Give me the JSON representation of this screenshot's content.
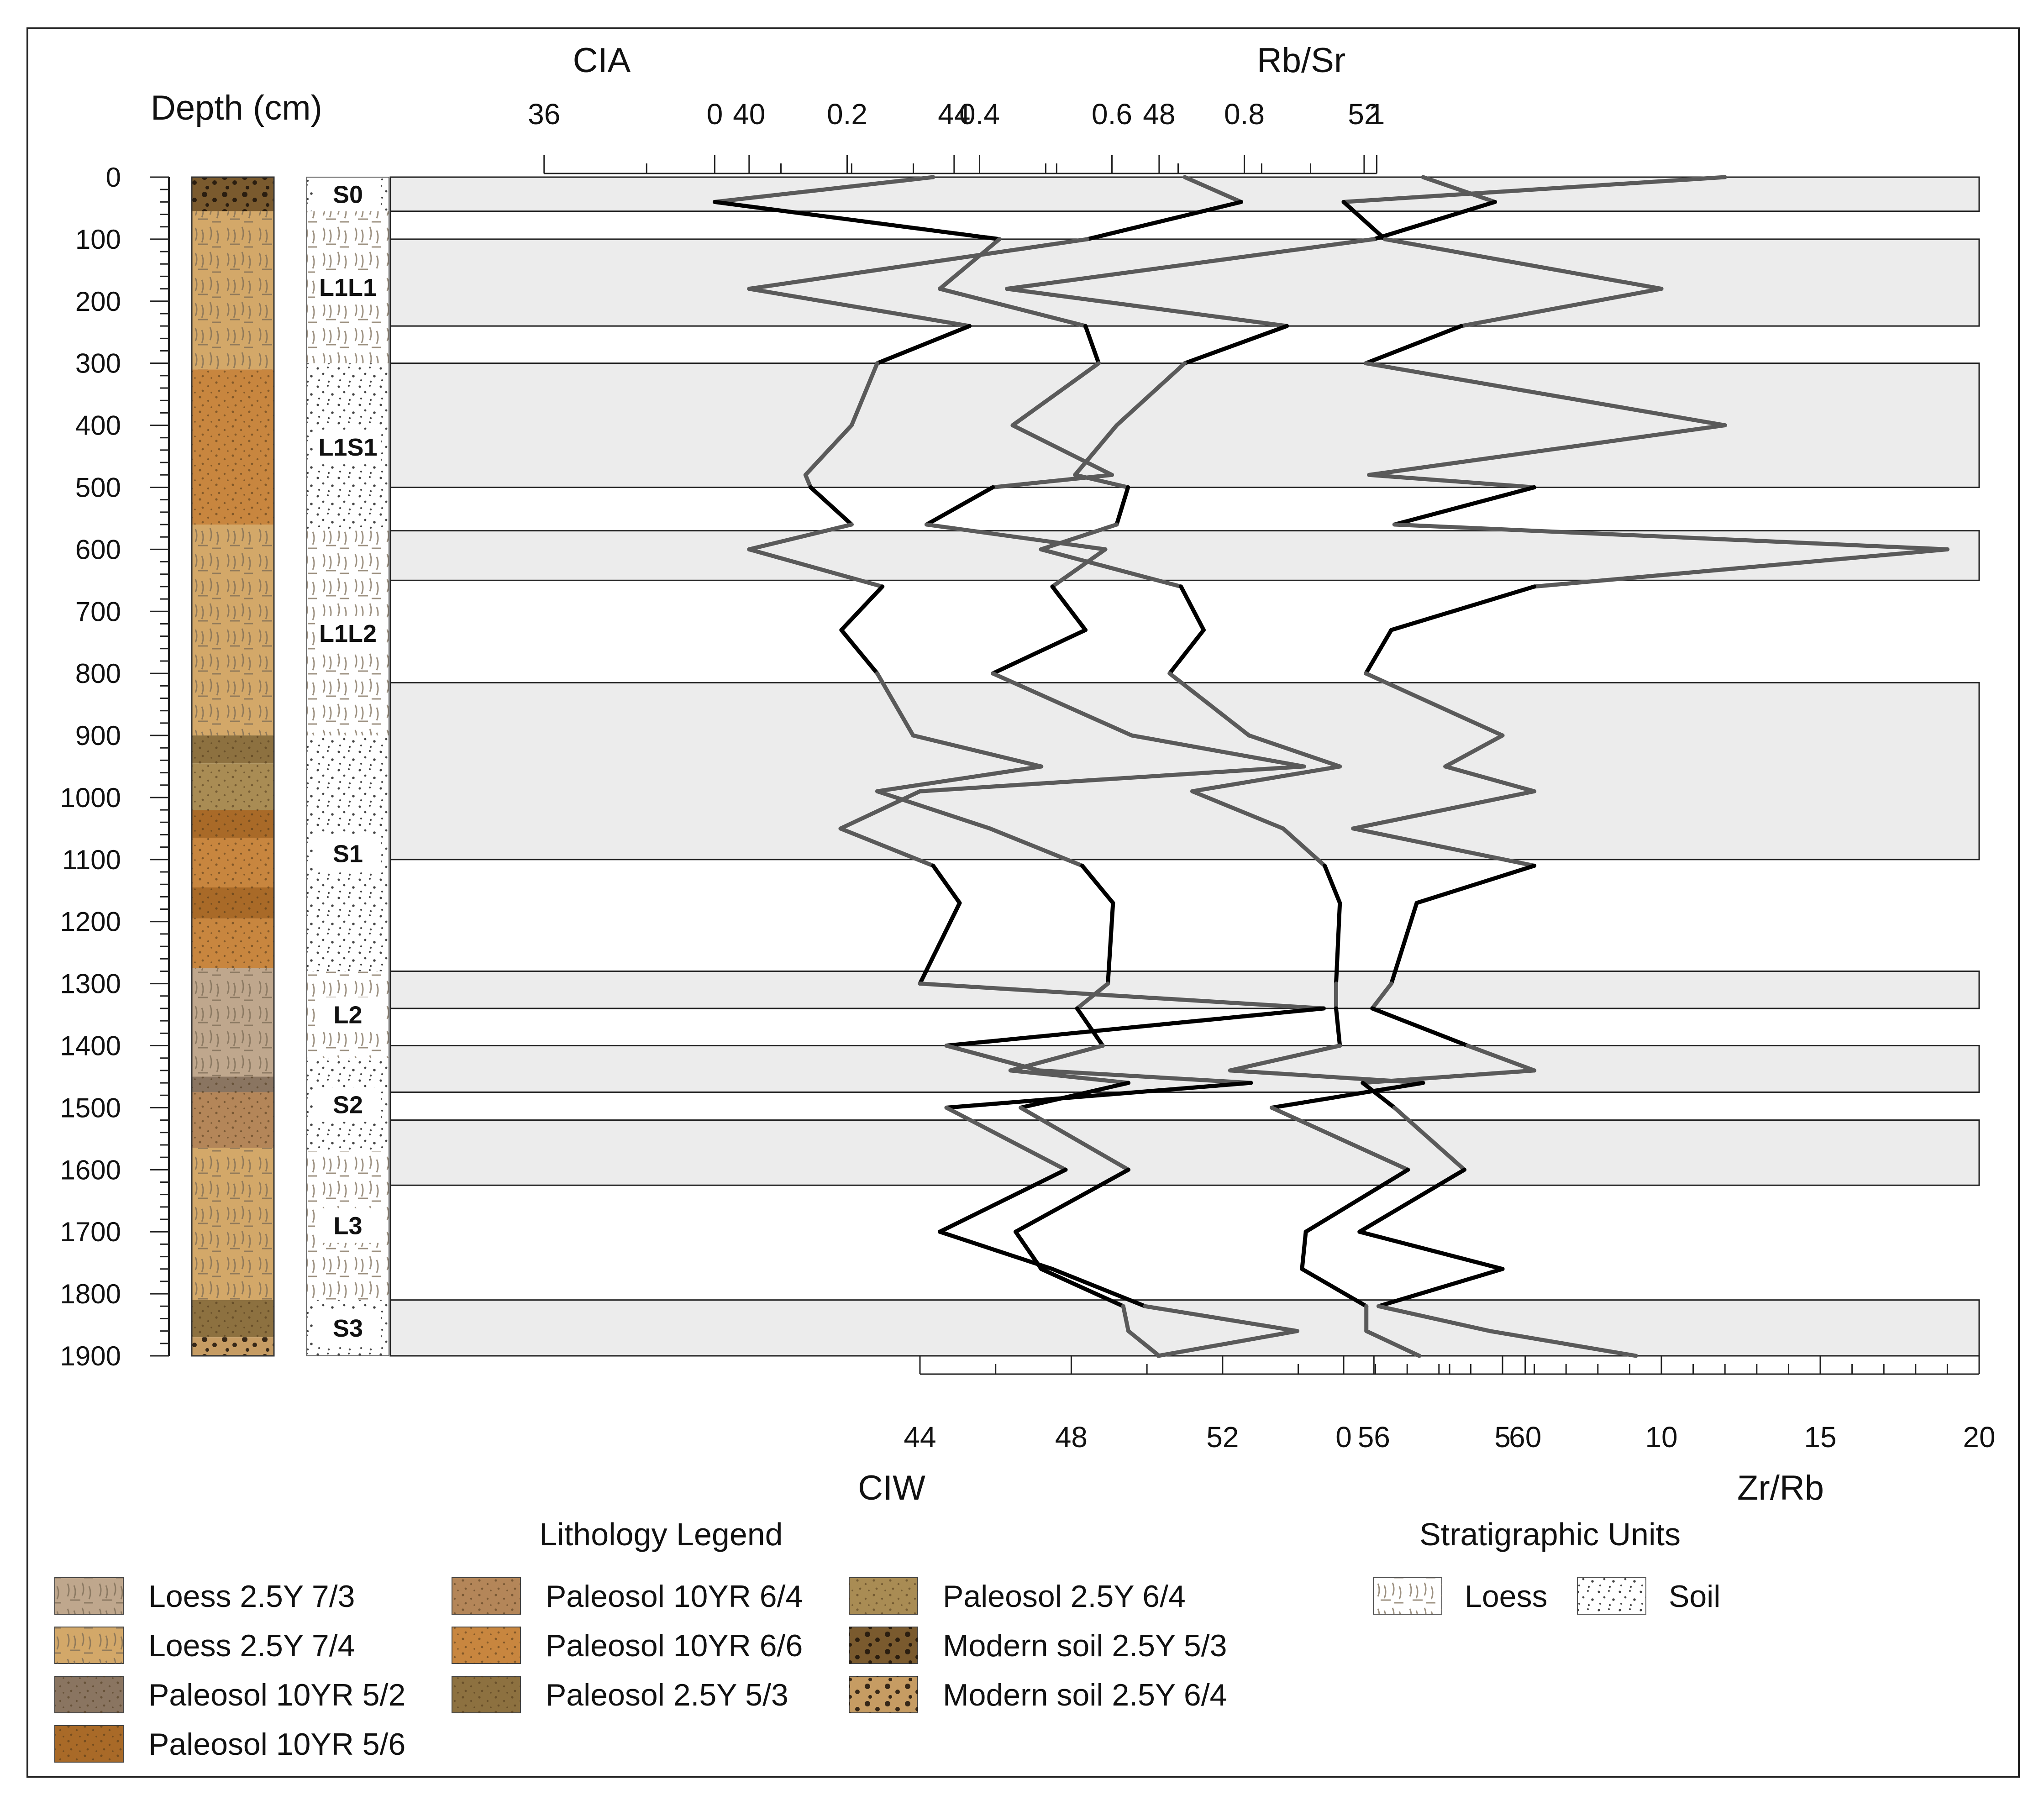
{
  "chart_data": {
    "type": "line",
    "depth_axis": {
      "title": "Depth (cm)",
      "range": [
        0,
        1900
      ],
      "ticks": [
        0,
        100,
        200,
        300,
        400,
        500,
        600,
        700,
        800,
        900,
        1000,
        1100,
        1200,
        1300,
        1400,
        1500,
        1600,
        1700,
        1800,
        1900
      ]
    },
    "axes": {
      "cia": {
        "title": "CIA",
        "range": [
          33,
          64
        ],
        "ticks": [
          36,
          40,
          44,
          48,
          52
        ]
      },
      "rbsr": {
        "title": "Rb/Sr",
        "range": [
          -0.49,
          1.91
        ],
        "ticks": [
          "0",
          "0.2",
          "0.4",
          "0.6",
          "0.8",
          "1"
        ]
      },
      "ciw": {
        "title": "CIW",
        "range": [
          30,
          72
        ],
        "ticks": [
          44,
          48,
          52,
          56,
          60
        ]
      },
      "zrrb": {
        "title": "Zr/Rb",
        "range": [
          -30,
          20
        ],
        "ticks": [
          0,
          5,
          10,
          15,
          20
        ]
      }
    },
    "series": [
      {
        "name": "CIA",
        "depth": [
          0,
          40,
          100,
          180,
          240,
          300,
          400,
          480,
          500,
          560,
          600,
          660,
          730,
          800,
          900,
          950,
          990,
          1050,
          1110,
          1170,
          1300,
          1340,
          1400,
          1440,
          1460,
          1500,
          1600,
          1700,
          1760,
          1820,
          1860,
          1900
        ],
        "values": [
          48.5,
          49.6,
          46.6,
          40.0,
          44.3,
          42.5,
          42.0,
          41.1,
          41.2,
          42.0,
          40.0,
          42.6,
          41.8,
          42.5,
          43.2,
          45.7,
          42.5,
          44.7,
          46.5,
          47.1,
          47.0,
          46.4,
          46.9,
          45.1,
          47.4,
          45.3,
          47.4,
          45.2,
          45.7,
          47.3,
          47.4,
          48.0
        ]
      },
      {
        "name": "CIW",
        "depth": [
          0,
          40,
          100,
          180,
          240,
          300,
          400,
          480,
          500,
          560,
          600,
          660,
          730,
          800,
          900,
          950,
          990,
          1050,
          1110,
          1170,
          1300,
          1340,
          1400,
          1440,
          1460,
          1500,
          1600,
          1700,
          1760,
          1820,
          1860,
          1900
        ],
        "values": [
          57.3,
          59.2,
          56.0,
          46.3,
          53.7,
          51.0,
          49.2,
          48.1,
          49.5,
          49.2,
          47.2,
          50.9,
          51.5,
          50.6,
          52.7,
          55.1,
          51.2,
          53.6,
          54.7,
          55.1,
          55.0,
          55.0,
          55.1,
          52.2,
          57.3,
          53.3,
          56.9,
          54.2,
          54.1,
          55.8,
          55.8,
          57.2
        ]
      },
      {
        "name": "Rb/Sr",
        "depth": [
          0,
          40,
          100,
          180,
          240,
          300,
          400,
          480,
          500,
          560,
          600,
          660,
          730,
          800,
          900,
          950,
          990,
          1050,
          1110,
          1170,
          1300,
          1340,
          1400,
          1440,
          1460,
          1500,
          1600,
          1700,
          1760,
          1820,
          1860,
          1900
        ],
        "values": [
          0.33,
          0.0,
          0.43,
          0.34,
          0.56,
          0.58,
          0.45,
          0.6,
          0.42,
          0.32,
          0.59,
          0.51,
          0.56,
          0.42,
          0.63,
          0.89,
          0.31,
          0.19,
          0.33,
          0.37,
          0.31,
          0.92,
          0.35,
          0.49,
          0.81,
          0.35,
          0.53,
          0.34,
          0.51,
          0.65,
          0.88,
          0.67
        ]
      },
      {
        "name": "Zr/Rb",
        "depth": [
          0,
          40,
          100,
          180,
          240,
          300,
          400,
          480,
          500,
          560,
          600,
          660,
          730,
          800,
          900,
          950,
          990,
          1050,
          1110,
          1170,
          1300,
          1340,
          1400,
          1440,
          1460,
          1500,
          1600,
          1700,
          1760,
          1820,
          1860,
          1900
        ],
        "values": [
          12.0,
          0.0,
          1.3,
          10.0,
          3.7,
          0.7,
          12.0,
          0.8,
          6.0,
          1.6,
          19.0,
          6.0,
          1.5,
          0.7,
          5.0,
          3.2,
          6.0,
          0.3,
          6.0,
          2.3,
          1.5,
          0.9,
          3.9,
          6.0,
          0.6,
          1.6,
          3.8,
          0.5,
          5.0,
          1.1,
          4.6,
          9.2
        ]
      }
    ],
    "unit_bands": [
      {
        "from": 0,
        "to": 55
      },
      {
        "from": 100,
        "to": 240
      },
      {
        "from": 300,
        "to": 500
      },
      {
        "from": 570,
        "to": 650
      },
      {
        "from": 815,
        "to": 1100
      },
      {
        "from": 1280,
        "to": 1340
      },
      {
        "from": 1400,
        "to": 1475
      },
      {
        "from": 1520,
        "to": 1625
      },
      {
        "from": 1810,
        "to": 1900
      }
    ],
    "lithology": [
      {
        "from": 0,
        "to": 55,
        "color": "#7a5a2e"
      },
      {
        "from": 55,
        "to": 310,
        "color": "#d3a869"
      },
      {
        "from": 310,
        "to": 560,
        "color": "#c8863f"
      },
      {
        "from": 560,
        "to": 900,
        "color": "#d3a869"
      },
      {
        "from": 900,
        "to": 945,
        "color": "#8d7140"
      },
      {
        "from": 945,
        "to": 1020,
        "color": "#a98c54"
      },
      {
        "from": 1020,
        "to": 1065,
        "color": "#a96a28"
      },
      {
        "from": 1065,
        "to": 1145,
        "color": "#c8863f"
      },
      {
        "from": 1145,
        "to": 1195,
        "color": "#a96a28"
      },
      {
        "from": 1195,
        "to": 1275,
        "color": "#c8863f"
      },
      {
        "from": 1275,
        "to": 1450,
        "color": "#bfa78d"
      },
      {
        "from": 1450,
        "to": 1475,
        "color": "#8a7561"
      },
      {
        "from": 1475,
        "to": 1565,
        "color": "#b48659"
      },
      {
        "from": 1565,
        "to": 1810,
        "color": "#d3a869"
      },
      {
        "from": 1810,
        "to": 1870,
        "color": "#8d7140"
      },
      {
        "from": 1870,
        "to": 1900,
        "color": "#c69c63"
      }
    ],
    "strat_units": [
      {
        "label": "S0",
        "from": 0,
        "to": 55,
        "type": "soil"
      },
      {
        "label": "L1L1",
        "from": 55,
        "to": 300,
        "type": "loess"
      },
      {
        "label": "L1S1",
        "from": 300,
        "to": 570,
        "type": "soil"
      },
      {
        "label": "L1L2",
        "from": 570,
        "to": 900,
        "type": "loess"
      },
      {
        "label": "S1",
        "from": 900,
        "to": 1280,
        "type": "soil"
      },
      {
        "label": "L2",
        "from": 1280,
        "to": 1420,
        "type": "loess"
      },
      {
        "label": "S2",
        "from": 1420,
        "to": 1570,
        "type": "soil"
      },
      {
        "label": "L3",
        "from": 1570,
        "to": 1810,
        "type": "loess"
      },
      {
        "label": "S3",
        "from": 1810,
        "to": 1900,
        "type": "soil"
      }
    ],
    "legend_title": "Lithology Legend",
    "legend": [
      {
        "label": "Loess 2.5Y 7/3",
        "color": "#bfa78d",
        "pattern": "loess"
      },
      {
        "label": "Loess 2.5Y 7/4",
        "color": "#d3a869",
        "pattern": "loess"
      },
      {
        "label": "Paleosol 10YR 5/2",
        "color": "#8a7561",
        "pattern": "dots"
      },
      {
        "label": "Paleosol 10YR 5/6",
        "color": "#a96a28",
        "pattern": "dots"
      },
      {
        "label": "Paleosol 10YR 6/4",
        "color": "#b48659",
        "pattern": "dots"
      },
      {
        "label": "Paleosol 10YR 6/6",
        "color": "#c8863f",
        "pattern": "dots"
      },
      {
        "label": "Paleosol 2.5Y 5/3",
        "color": "#8d7140",
        "pattern": "dots"
      },
      {
        "label": "Paleosol 2.5Y 6/4",
        "color": "#a98c54",
        "pattern": "dots"
      },
      {
        "label": "Modern soil 2.5Y 5/3",
        "color": "#7a5a2e",
        "pattern": "bigdots"
      },
      {
        "label": "Modern soil 2.5Y 6/4",
        "color": "#c69c63",
        "pattern": "bigdots"
      }
    ],
    "strat_legend_title": "Stratigraphic Units",
    "strat_legend": [
      {
        "label": "Loess",
        "pattern": "loess"
      },
      {
        "label": "Soil",
        "pattern": "soil"
      }
    ]
  }
}
